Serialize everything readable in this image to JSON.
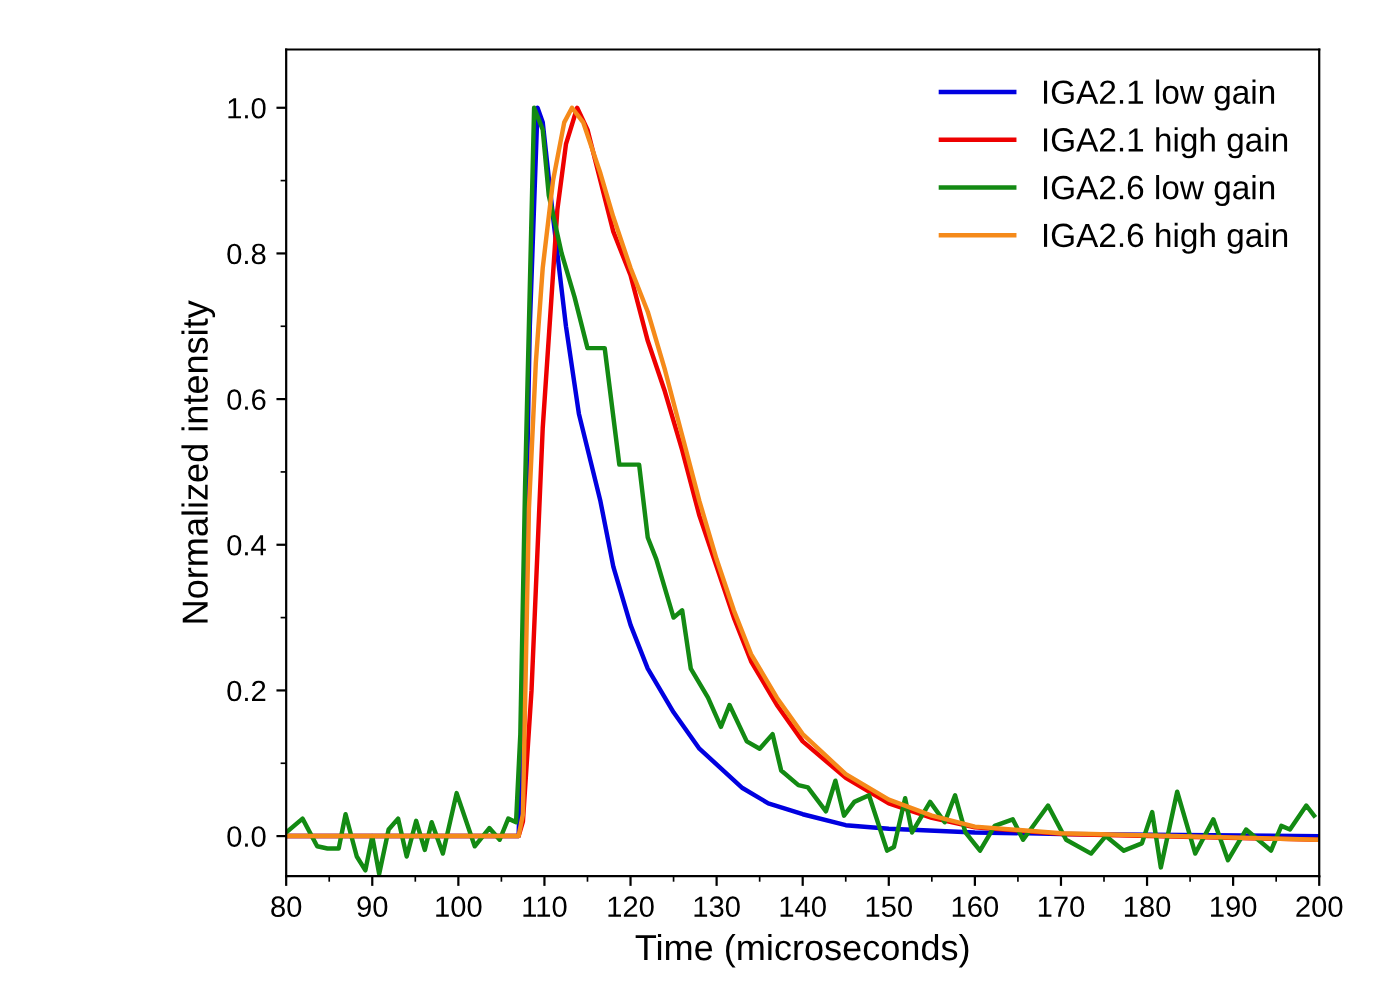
{
  "chart_data": {
    "type": "line",
    "xlabel": "Time (microseconds)",
    "ylabel": "Normalized intensity",
    "xlim": [
      80,
      200
    ],
    "xticks": [
      80,
      90,
      100,
      110,
      120,
      130,
      140,
      150,
      160,
      170,
      180,
      190,
      200
    ],
    "ylim": [
      -0.055,
      1.08
    ],
    "yticks": [
      {
        "value": 0,
        "label": "0.0"
      },
      {
        "value": 0.2,
        "label": "0.2"
      },
      {
        "value": 0.4,
        "label": "0.4"
      },
      {
        "value": 0.6,
        "label": "0.6"
      },
      {
        "value": 0.8,
        "label": "0.8"
      },
      {
        "value": 1,
        "label": "1.0"
      }
    ],
    "grid": false,
    "legend": "top right",
    "marker": "none",
    "line_style": "solid",
    "series": [
      {
        "name": "IGA2.1 low gain",
        "color": "#0000e0",
        "x": [
          80,
          107,
          107.5,
          108.3,
          109.2,
          109.8,
          111,
          112.5,
          114,
          116.5,
          118,
          120,
          122,
          125,
          128,
          133,
          136,
          140,
          145,
          150,
          160,
          170,
          200
        ],
        "values": [
          0,
          0,
          0.2,
          0.7,
          1.0,
          0.98,
          0.85,
          0.7,
          0.58,
          0.46,
          0.37,
          0.29,
          0.23,
          0.17,
          0.12,
          0.066,
          0.045,
          0.03,
          0.015,
          0.01,
          0.005,
          0.003,
          0
        ]
      },
      {
        "name": "IGA2.1 high gain",
        "color": "#ee0000",
        "x": [
          80,
          107,
          107.5,
          108.5,
          109.8,
          111.5,
          112.5,
          113.8,
          115,
          116.5,
          118,
          120,
          122,
          124,
          126,
          128,
          130,
          132,
          134,
          137,
          140,
          145,
          150,
          155,
          160,
          170,
          200
        ],
        "values": [
          0,
          0,
          0.02,
          0.2,
          0.56,
          0.86,
          0.95,
          1.0,
          0.97,
          0.9,
          0.83,
          0.77,
          0.68,
          0.61,
          0.53,
          0.44,
          0.37,
          0.3,
          0.24,
          0.18,
          0.13,
          0.08,
          0.045,
          0.025,
          0.012,
          0.003,
          -0.005
        ]
      },
      {
        "name": "IGA2.6 low gain",
        "color": "#138a13",
        "x": [
          80,
          81.9,
          83.6,
          84.8,
          86.1,
          86.9,
          88.2,
          89.2,
          90,
          90.8,
          91.9,
          93,
          94,
          95.1,
          96.1,
          96.9,
          98.2,
          99.8,
          101.9,
          103.6,
          104.8,
          105.8,
          106.7,
          107.2,
          107.75,
          108.8,
          109.8,
          110.5,
          112,
          113.5,
          115,
          117,
          118.7,
          121,
          122,
          123,
          125,
          126,
          127,
          129,
          130.5,
          131.5,
          133.5,
          135,
          136.5,
          137.5,
          139.5,
          140.6,
          142.7,
          143.8,
          144.8,
          146,
          147.7,
          149.8,
          150.6,
          151.9,
          152.7,
          154.8,
          156.5,
          157.7,
          158.9,
          160.6,
          162.3,
          164.4,
          165.6,
          168.5,
          170.6,
          173.5,
          175.2,
          177.3,
          179.4,
          180.6,
          181.6,
          183.5,
          185.6,
          187.7,
          189.4,
          191.5,
          194.4,
          195.6,
          196.6,
          198.5,
          199.4
        ],
        "values": [
          0.005,
          0.024,
          -0.014,
          -0.017,
          -0.017,
          0.03,
          -0.028,
          -0.047,
          0,
          -0.052,
          0.009,
          0.024,
          -0.028,
          0.021,
          -0.019,
          0.019,
          -0.024,
          0.059,
          -0.014,
          0.011,
          -0.005,
          0.024,
          0.019,
          0.14,
          0.48,
          1.0,
          0.97,
          0.88,
          0.8,
          0.74,
          0.67,
          0.67,
          0.51,
          0.51,
          0.41,
          0.38,
          0.3,
          0.31,
          0.23,
          0.19,
          0.15,
          0.18,
          0.13,
          0.12,
          0.14,
          0.09,
          0.07,
          0.067,
          0.034,
          0.076,
          0.028,
          0.047,
          0.056,
          -0.02,
          -0.015,
          0.052,
          0.005,
          0.047,
          0.019,
          0.056,
          0.005,
          -0.02,
          0.014,
          0.023,
          -0.005,
          0.042,
          -0.005,
          -0.024,
          0,
          -0.02,
          -0.01,
          0.033,
          -0.043,
          0.061,
          -0.024,
          0.023,
          -0.033,
          0.009,
          -0.02,
          0.014,
          0.009,
          0.042,
          0.028
        ]
      },
      {
        "name": "IGA2.6 high gain",
        "color": "#f58a1a",
        "x": [
          80,
          107,
          107.5,
          108.2,
          109,
          109.8,
          111,
          112.3,
          113.2,
          114.5,
          116.5,
          118,
          120,
          122,
          124,
          126,
          128,
          130,
          132,
          134,
          137,
          140,
          145,
          150,
          155,
          160,
          170,
          200
        ],
        "values": [
          0,
          0,
          0.03,
          0.45,
          0.65,
          0.78,
          0.9,
          0.98,
          1.0,
          0.98,
          0.91,
          0.85,
          0.78,
          0.72,
          0.64,
          0.55,
          0.46,
          0.38,
          0.31,
          0.25,
          0.19,
          0.14,
          0.085,
          0.05,
          0.028,
          0.013,
          0.004,
          -0.005
        ]
      }
    ]
  }
}
